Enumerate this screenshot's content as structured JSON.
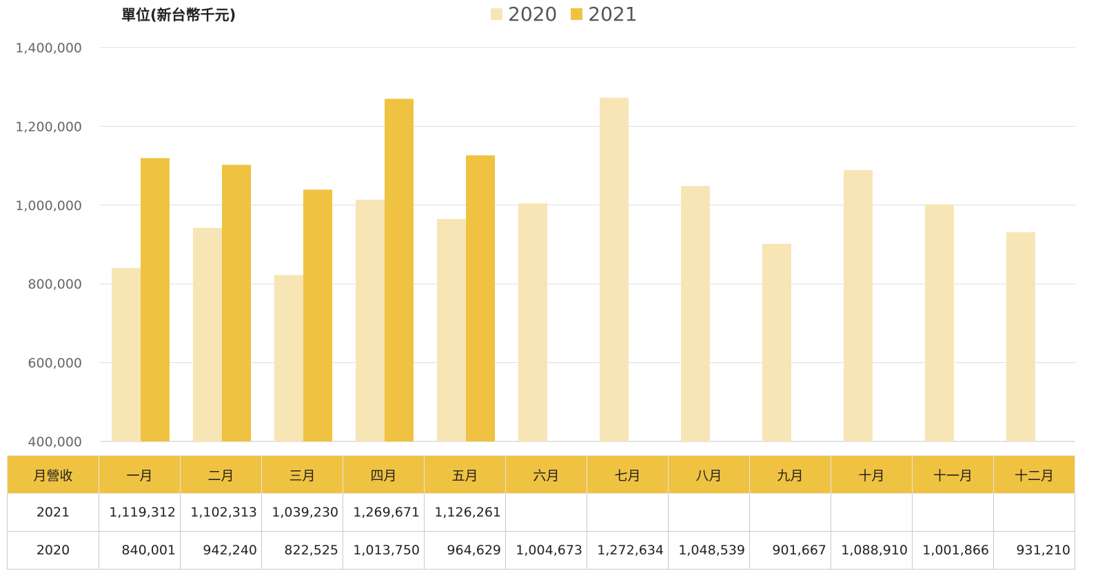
{
  "unit_label": "單位(新台幣千元)",
  "table": {
    "corner_label": "月營收",
    "row_labels": [
      "2021",
      "2020"
    ]
  },
  "chart_data": {
    "type": "bar",
    "categories": [
      "一月",
      "二月",
      "三月",
      "四月",
      "五月",
      "六月",
      "七月",
      "八月",
      "九月",
      "十月",
      "十一月",
      "十二月"
    ],
    "series": [
      {
        "name": "2020",
        "color": "#f8e5b6",
        "values": [
          840001,
          942240,
          822525,
          1013750,
          964629,
          1004673,
          1272634,
          1048539,
          901667,
          1088910,
          1001866,
          931210
        ],
        "display": [
          "840,001",
          "942,240",
          "822,525",
          "1,013,750",
          "964,629",
          "1,004,673",
          "1,272,634",
          "1,048,539",
          "901,667",
          "1,088,910",
          "1,001,866",
          "931,210"
        ]
      },
      {
        "name": "2021",
        "color": "#f0c242",
        "values": [
          1119312,
          1102313,
          1039230,
          1269671,
          1126261,
          null,
          null,
          null,
          null,
          null,
          null,
          null
        ],
        "display": [
          "1,119,312",
          "1,102,313",
          "1,039,230",
          "1,269,671",
          "1,126,261",
          "",
          "",
          "",
          "",
          "",
          "",
          ""
        ]
      }
    ],
    "ylim": [
      400000,
      1400000
    ],
    "yticks": [
      400000,
      600000,
      800000,
      1000000,
      1200000,
      1400000
    ],
    "ytick_labels": [
      "400,000",
      "600,000",
      "800,000",
      "1,000,000",
      "1,200,000",
      "1,400,000"
    ],
    "grid": true,
    "legend_position": "top-center"
  }
}
